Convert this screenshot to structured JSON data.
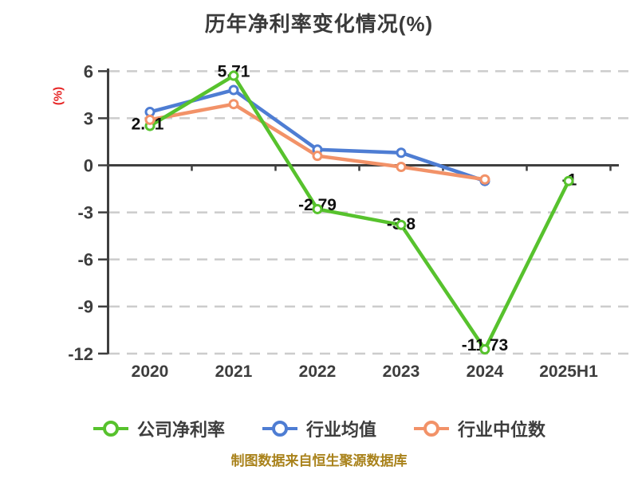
{
  "header": {
    "title": "历年净利率变化情况(%)"
  },
  "chart_data": {
    "type": "line",
    "title": "历年净利率变化情况(%)",
    "ylabel": "(%)",
    "ylabel_color": "#e62222",
    "categories": [
      "2020",
      "2021",
      "2022",
      "2023",
      "2024",
      "2025H1"
    ],
    "yticks": [
      6,
      3,
      0,
      -3,
      -6,
      -9,
      -12
    ],
    "ylim": [
      -12,
      6
    ],
    "grid": {
      "horizontal": true,
      "style": "dashed",
      "color": "#cccccc"
    },
    "axis_color": "#3f3f3f",
    "tick_label_color": "#3d3d3d",
    "point_label_color": "#101010",
    "legend_position": "bottom",
    "series": [
      {
        "name": "公司净利率",
        "color": "#57c22d",
        "values": [
          2.51,
          5.71,
          -2.79,
          -3.8,
          -11.73,
          -1
        ],
        "point_labels": [
          "2.51",
          "5.71",
          "-2.79",
          "-3.8",
          "-11.73",
          "-1"
        ]
      },
      {
        "name": "行业均值",
        "color": "#4e7dd3",
        "values": [
          3.4,
          4.8,
          1.0,
          0.8,
          -1.0,
          null
        ],
        "point_labels": []
      },
      {
        "name": "行业中位数",
        "color": "#f29268",
        "values": [
          2.9,
          3.9,
          0.6,
          -0.1,
          -0.9,
          null
        ],
        "point_labels": []
      }
    ]
  },
  "legend": {
    "items": [
      {
        "label": "公司净利率",
        "color": "#57c22d"
      },
      {
        "label": "行业均值",
        "color": "#4e7dd3"
      },
      {
        "label": "行业中位数",
        "color": "#f29268"
      }
    ]
  },
  "footer": {
    "text": "制图数据来自恒生聚源数据库",
    "color": "#a9821b"
  }
}
